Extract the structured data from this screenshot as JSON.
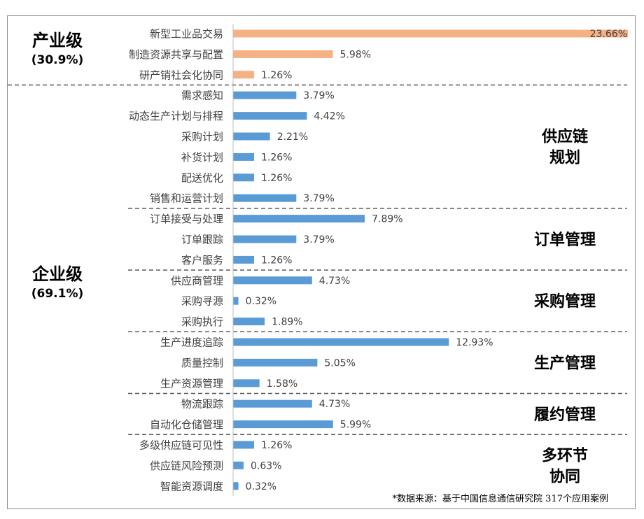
{
  "chart_data": {
    "type": "bar",
    "orientation": "horizontal",
    "categories": [
      "新型工业品交易",
      "制造资源共享与配置",
      "研产销社会化协同",
      "需求感知",
      "动态生产计划与排程",
      "采购计划",
      "补货计划",
      "配送优化",
      "销售和运营计划",
      "订单接受与处理",
      "订单跟踪",
      "客户服务",
      "供应商管理",
      "采购寻源",
      "采购执行",
      "生产进度追踪",
      "质量控制",
      "生产资源管理",
      "物流跟踪",
      "自动化仓储管理",
      "多级供应链可见性",
      "供应链风险预测",
      "智能资源调度"
    ],
    "values": [
      23.66,
      5.98,
      1.26,
      3.79,
      4.42,
      2.21,
      1.26,
      1.26,
      3.79,
      7.89,
      3.79,
      1.26,
      4.73,
      0.32,
      1.89,
      12.93,
      5.05,
      1.58,
      4.73,
      5.99,
      1.26,
      0.63,
      0.32
    ],
    "value_labels": [
      "23.66%",
      "5.98%",
      "1.26%",
      "3.79%",
      "4.42%",
      "2.21%",
      "1.26%",
      "1.26%",
      "3.79%",
      "7.89%",
      "3.79%",
      "1.26%",
      "4.73%",
      "0.32%",
      "1.89%",
      "12.93%",
      "5.05%",
      "1.58%",
      "4.73%",
      "5.99%",
      "1.26%",
      "0.63%",
      "0.32%"
    ],
    "bar_groups": [
      "industry",
      "industry",
      "industry",
      "enterprise",
      "enterprise",
      "enterprise",
      "enterprise",
      "enterprise",
      "enterprise",
      "enterprise",
      "enterprise",
      "enterprise",
      "enterprise",
      "enterprise",
      "enterprise",
      "enterprise",
      "enterprise",
      "enterprise",
      "enterprise",
      "enterprise",
      "enterprise",
      "enterprise",
      "enterprise"
    ],
    "xlim": [
      0,
      23.66
    ],
    "grid": false,
    "legend": "none",
    "colors": {
      "industry": "#f4b183",
      "enterprise": "#5b9bd5"
    },
    "groups": [
      {
        "label": "产业级",
        "pct": "(30.9%)",
        "start": 0,
        "end": 2
      },
      {
        "label": "企业级",
        "pct": "(69.1%)",
        "start": 3,
        "end": 22
      }
    ],
    "sections": [
      {
        "lines": [
          "供应链",
          "规划"
        ],
        "start": 3,
        "end": 8
      },
      {
        "lines": [
          "订单管理"
        ],
        "start": 9,
        "end": 11
      },
      {
        "lines": [
          "采购管理"
        ],
        "start": 12,
        "end": 14
      },
      {
        "lines": [
          "生产管理"
        ],
        "start": 15,
        "end": 17
      },
      {
        "lines": [
          "履约管理"
        ],
        "start": 18,
        "end": 19
      },
      {
        "lines": [
          "多环节",
          "协同"
        ],
        "start": 20,
        "end": 22
      }
    ]
  },
  "source_note": "*数据来源：基于中国信息通信研究院 317个应用案例"
}
